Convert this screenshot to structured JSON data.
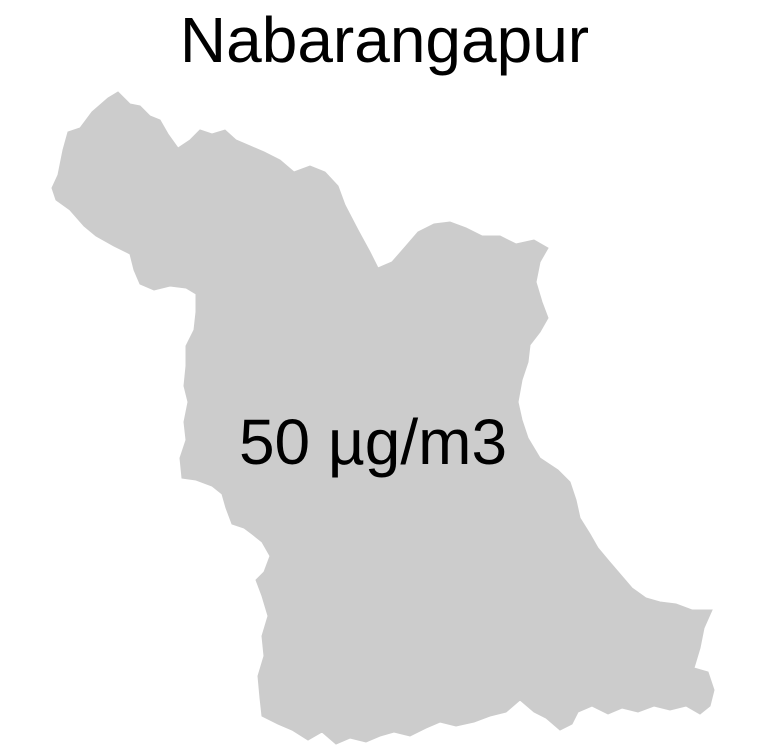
{
  "map": {
    "title": "Nabarangapur",
    "region_fill": "#cccccc",
    "value_label": "50 µg/m3"
  }
}
